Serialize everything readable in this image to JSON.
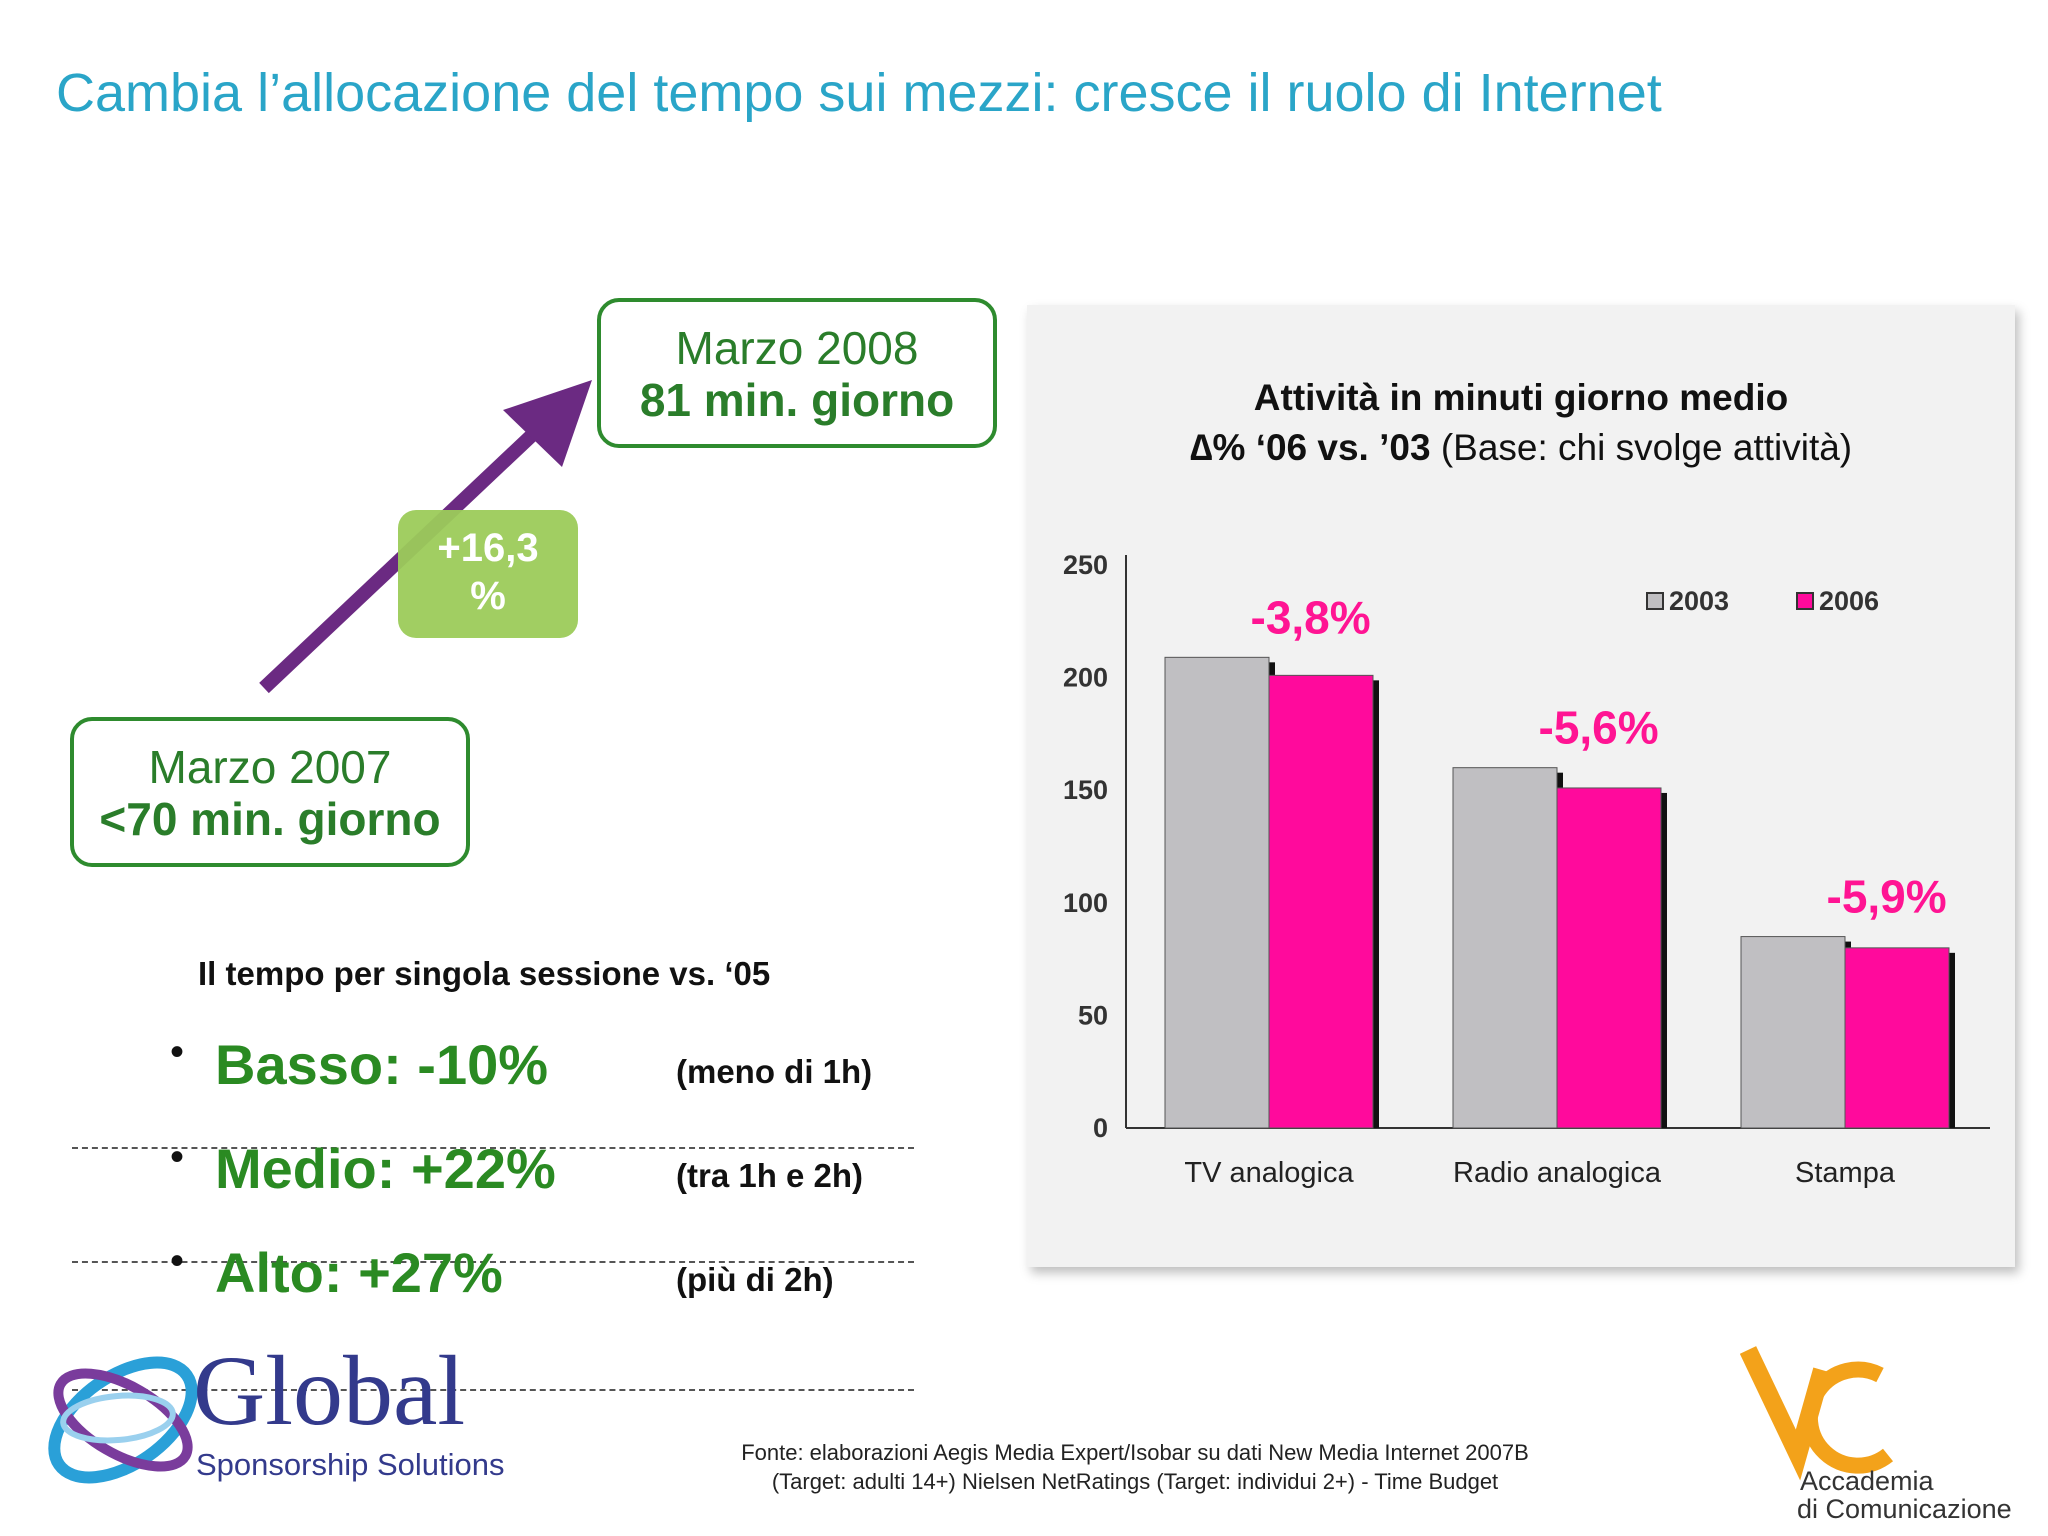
{
  "slide": {
    "title": "Cambia l’allocazione del tempo sui mezzi: cresce il ruolo di Internet"
  },
  "trend": {
    "start_label": "Marzo 2007",
    "start_value": "<70 min. giorno",
    "end_label": "Marzo 2008",
    "end_value": "81 min. giorno",
    "growth_line1": "+16,3",
    "growth_line2": "%"
  },
  "session": {
    "heading": "Il tempo per singola sessione vs. ‘05",
    "items": [
      {
        "level": "Basso: -10%",
        "range": "(meno di 1h)"
      },
      {
        "level": "Medio: +22%",
        "range": "(tra 1h e 2h)"
      },
      {
        "level": "Alto: +27%",
        "range": "(più di 2h)"
      }
    ]
  },
  "chart_title": {
    "line1": "Attività in minuti giorno medio",
    "line2_bold": "∆% ‘06 vs. ’03",
    "line2_rest": " (Base: chi svolge attività)"
  },
  "chart_data": {
    "type": "bar",
    "categories": [
      "TV analogica",
      "Radio analogica",
      "Stampa"
    ],
    "series": [
      {
        "name": "2003",
        "values": [
          209,
          160,
          85
        ],
        "color": "#c0bfc2"
      },
      {
        "name": "2006",
        "values": [
          201,
          151,
          80
        ],
        "color": "#ff0a9c"
      }
    ],
    "ylim": [
      0,
      250
    ],
    "yticks": [
      "0",
      "50",
      "100",
      "150",
      "200",
      "250"
    ],
    "annotations": [
      "-3,8%",
      "-5,6%",
      "-5,9%"
    ],
    "annotation_color": "#ff1493",
    "legend_position": "top-right",
    "grid": false
  },
  "footer": {
    "source_line1": "Fonte: elaborazioni Aegis Media Expert/Isobar su dati New Media Internet 2007B",
    "source_line2": "(Target: adulti 14+) Nielsen NetRatings (Target: individui 2+) - Time Budget"
  },
  "logos": {
    "left_name": "Global",
    "left_sub": "Sponsorship Solutions",
    "right_line1": "Accademia",
    "right_line2": "di Comunicazione"
  },
  "colors": {
    "title": "#2aa5c8",
    "green": "#2a8a22",
    "arrow": "#6b2a82",
    "badge": "#9ccc5a"
  }
}
